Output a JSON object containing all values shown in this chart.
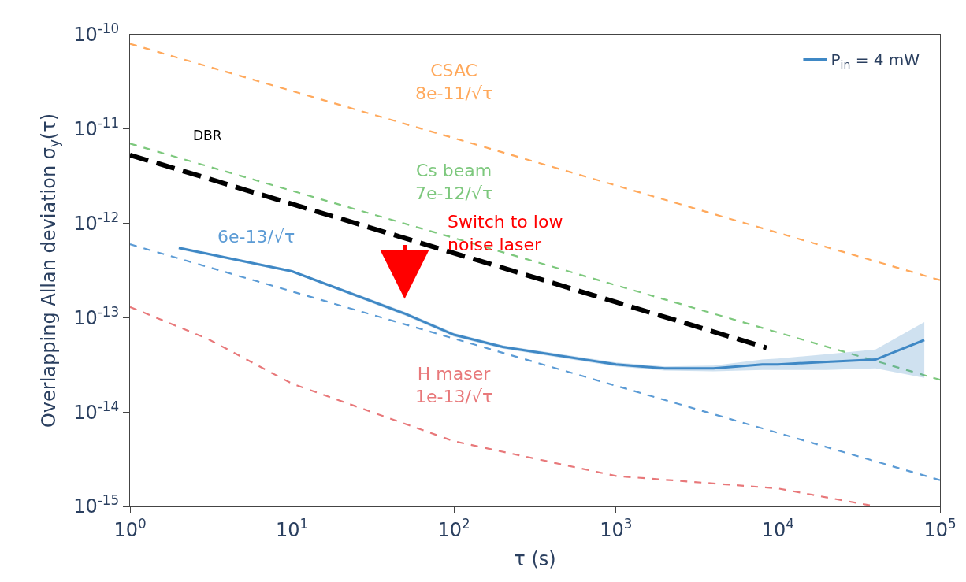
{
  "chart_data": {
    "type": "line",
    "log": "xy",
    "xlabel": "τ (s)",
    "ylabel": "Overlapping Allan deviation σ$_{y}$(τ)",
    "xlim": [
      1,
      100000
    ],
    "ylim": [
      1e-15,
      1e-10
    ],
    "xticks": [
      {
        "value": 1,
        "label": "10$^{0}$"
      },
      {
        "value": 10,
        "label": "10$^{1}$"
      },
      {
        "value": 100,
        "label": "10$^{2}$"
      },
      {
        "value": 1000,
        "label": "10$^{3}$"
      },
      {
        "value": 10000,
        "label": "10$^{4}$"
      },
      {
        "value": 100000,
        "label": "10$^{5}$"
      }
    ],
    "yticks": [
      {
        "value": 1e-15,
        "label": "10$^{-15}$"
      },
      {
        "value": 1e-14,
        "label": "10$^{-14}$"
      },
      {
        "value": 1e-13,
        "label": "10$^{-13}$"
      },
      {
        "value": 1e-12,
        "label": "10$^{-12}$"
      },
      {
        "value": 1e-11,
        "label": "10$^{-11}$"
      },
      {
        "value": 1e-10,
        "label": "10$^{-10}$"
      }
    ],
    "legend": "top right",
    "marker": "none",
    "series": [
      {
        "name": "CSAC\n8e-11/√τ",
        "color": "#ffa95c",
        "line_style": "dashed",
        "x": [
          1,
          100,
          100000
        ],
        "values": [
          8e-11,
          8e-12,
          2.5e-13
        ]
      },
      {
        "name": "Cs beam\n7e-12/√τ",
        "color": "#7dc87d",
        "line_style": "dashed",
        "x": [
          1,
          100,
          100000
        ],
        "values": [
          7e-12,
          7e-13,
          2.2e-14
        ]
      },
      {
        "name": "DBR",
        "color": "#000000",
        "line_style": "dashed",
        "x": [
          1,
          3,
          8500
        ],
        "values": [
          5.3e-12,
          3e-12,
          4.8e-14
        ]
      },
      {
        "name": "6e-13/√τ",
        "color": "#5b9bd5",
        "line_style": "dashed",
        "x": [
          1,
          6,
          100000
        ],
        "values": [
          6e-13,
          2.45e-13,
          1.9e-15
        ]
      },
      {
        "name": "H maser\n1e-13/√τ",
        "color": "#e8787a",
        "line_style": "dashed",
        "x": [
          1,
          3,
          10,
          100,
          1000,
          10000,
          40000
        ],
        "values": [
          1.3e-13,
          6e-14,
          2e-14,
          4.9e-15,
          2.1e-15,
          1.55e-15,
          1e-15
        ]
      },
      {
        "name": "P$_{in}$ = 4 mW",
        "color": "#3f88c5",
        "line_style": "solid",
        "x": [
          2,
          10,
          50,
          100,
          200,
          1000,
          2000,
          4000,
          8000,
          10000,
          20000,
          40000,
          80000
        ],
        "values": [
          5.5e-13,
          3.1e-13,
          1.1e-13,
          6.6e-14,
          4.9e-14,
          3.2e-14,
          2.9e-14,
          2.9e-14,
          3.2e-14,
          3.2e-14,
          3.4e-14,
          3.6e-14,
          5.8e-14
        ],
        "lower": [
          5.3e-13,
          3e-13,
          1.05e-13,
          6.3e-14,
          4.7e-14,
          3.05e-14,
          2.75e-14,
          2.7e-14,
          2.8e-14,
          2.8e-14,
          2.8e-14,
          2.9e-14,
          2.3e-14
        ],
        "upper": [
          5.7e-13,
          3.2e-13,
          1.15e-13,
          6.9e-14,
          5.1e-14,
          3.35e-14,
          3.05e-14,
          3.1e-14,
          3.6e-14,
          3.7e-14,
          4.1e-14,
          4.6e-14,
          9e-14
        ]
      }
    ],
    "annotations": [
      "Switch to low\nnoise laser"
    ]
  }
}
